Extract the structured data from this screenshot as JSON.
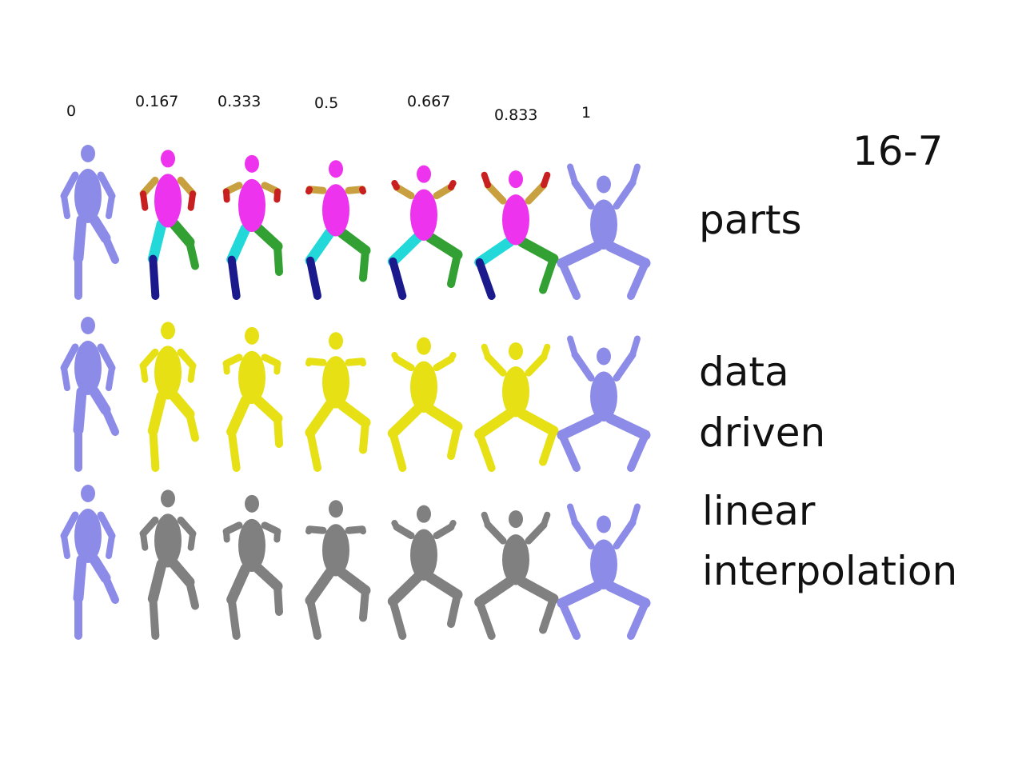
{
  "title": "16-7",
  "t_values": [
    "0",
    "0.167",
    "0.333",
    "0.5",
    "0.667",
    "0.833",
    "1"
  ],
  "row_labels": {
    "parts": "parts",
    "data_driven_line1": "data",
    "data_driven_line2": "driven",
    "linear_line1": "linear",
    "linear_line2": "interpolation"
  },
  "colors": {
    "endpoint": "#8c8ce8",
    "data_driven": "#e6e015",
    "linear": "#808080",
    "part_torso": "#ee33ee",
    "part_thigh_left": "#22d8d8",
    "part_thigh_right": "#33a033",
    "part_shin": "#1a1a8c",
    "part_forearm": "#c82020",
    "part_upper_arm": "#c8a040"
  }
}
